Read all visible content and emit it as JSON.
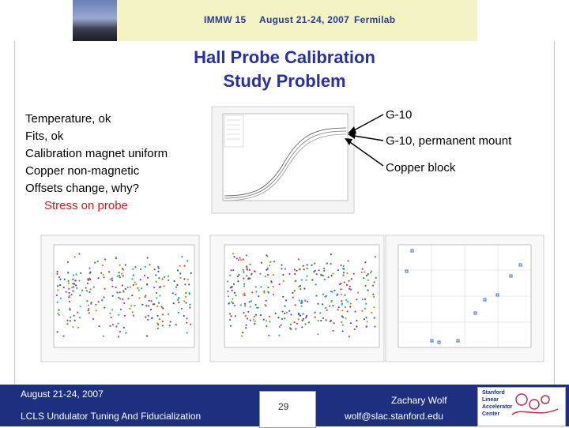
{
  "banner": {
    "conference": "IMMW 15",
    "dates": "August 21-24, 2007",
    "host": "Fermilab"
  },
  "slide": {
    "title_line1": "Hall Probe Calibration",
    "title_line2": "Study Problem",
    "bullets": [
      "Temperature, ok",
      "Fits, ok",
      "Calibration magnet uniform",
      "Copper non-magnetic",
      "Offsets change, why?"
    ],
    "highlight": "Stress on probe",
    "curve_labels": [
      "G-10",
      "G-10, permanent mount",
      "Copper block"
    ],
    "colors": {
      "title": "#2830a8",
      "highlight": "#cc1b1b",
      "footer": "#1f2f80"
    }
  },
  "footer": {
    "date": "August 21-24, 2007",
    "project": "LCLS Undulator Tuning And Fiducialization",
    "page": "29",
    "author": "Zachary Wolf",
    "email": "wolf@slac.stanford.edu",
    "logo_lines": [
      "Stanford",
      "Linear",
      "Accelerator",
      "Center"
    ]
  }
}
